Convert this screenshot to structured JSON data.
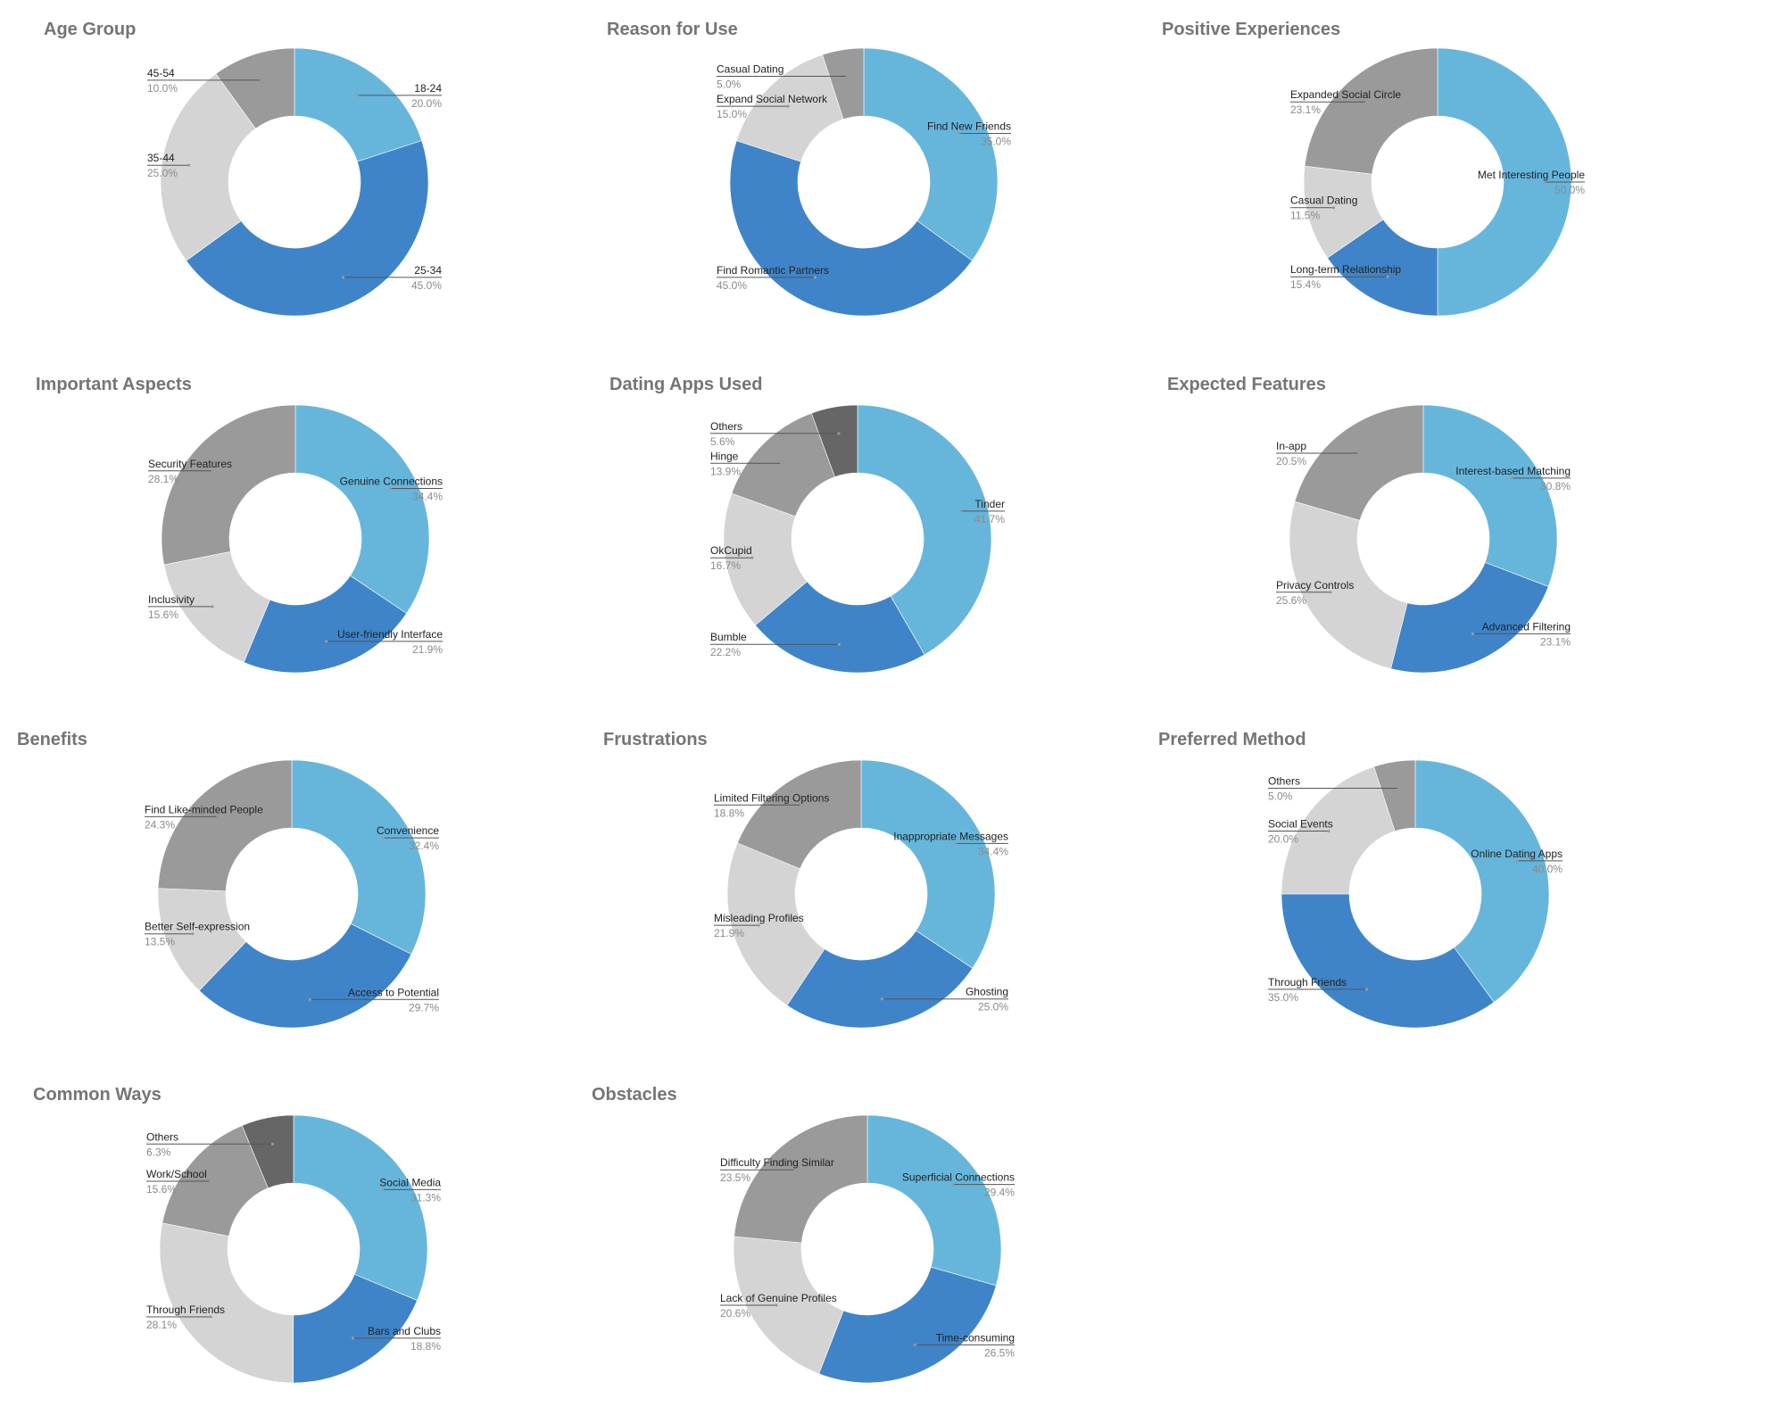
{
  "chart_data": [
    {
      "type": "pie",
      "title": "Age Group",
      "slices": [
        {
          "label": "18-24",
          "value": 20.0,
          "display": "20.0%",
          "color": "#66b6dc"
        },
        {
          "label": "25-34",
          "value": 45.0,
          "display": "45.0%",
          "color": "#3f84c8"
        },
        {
          "label": "35-44",
          "value": 25.0,
          "display": "25.0%",
          "color": "#d4d4d4"
        },
        {
          "label": "45-54",
          "value": 10.0,
          "display": "10.0%",
          "color": "#9a9a9a"
        }
      ]
    },
    {
      "type": "pie",
      "title": "Reason for Use",
      "slices": [
        {
          "label": "Find New Friends",
          "value": 35.0,
          "display": "35.0%",
          "color": "#66b6dc"
        },
        {
          "label": "Find Romantic Partners",
          "value": 45.0,
          "display": "45.0%",
          "color": "#3f84c8"
        },
        {
          "label": "Expand Social Network",
          "value": 15.0,
          "display": "15.0%",
          "color": "#d4d4d4"
        },
        {
          "label": "Casual Dating",
          "value": 5.0,
          "display": "5.0%",
          "color": "#9a9a9a"
        }
      ]
    },
    {
      "type": "pie",
      "title": "Positive Experiences",
      "slices": [
        {
          "label": "Met Interesting People",
          "value": 50.0,
          "display": "50.0%",
          "color": "#66b6dc"
        },
        {
          "label": "Long-term Relationship",
          "value": 15.4,
          "display": "15.4%",
          "color": "#3f84c8"
        },
        {
          "label": "Casual Dating",
          "value": 11.5,
          "display": "11.5%",
          "color": "#d4d4d4"
        },
        {
          "label": "Expanded Social Circle",
          "value": 23.1,
          "display": "23.1%",
          "color": "#9a9a9a"
        }
      ]
    },
    {
      "type": "pie",
      "title": "Important Aspects",
      "slices": [
        {
          "label": "Genuine Connections",
          "value": 34.4,
          "display": "34.4%",
          "color": "#66b6dc"
        },
        {
          "label": "User-friendly Interface",
          "value": 21.9,
          "display": "21.9%",
          "color": "#3f84c8"
        },
        {
          "label": "Inclusivity",
          "value": 15.6,
          "display": "15.6%",
          "color": "#d4d4d4"
        },
        {
          "label": "Security Features",
          "value": 28.1,
          "display": "28.1%",
          "color": "#9a9a9a"
        }
      ]
    },
    {
      "type": "pie",
      "title": "Dating Apps Used",
      "slices": [
        {
          "label": "Tinder",
          "value": 41.7,
          "display": "41.7%",
          "color": "#66b6dc"
        },
        {
          "label": "Bumble",
          "value": 22.2,
          "display": "22.2%",
          "color": "#3f84c8"
        },
        {
          "label": "OkCupid",
          "value": 16.7,
          "display": "16.7%",
          "color": "#d4d4d4"
        },
        {
          "label": "Hinge",
          "value": 13.9,
          "display": "13.9%",
          "color": "#9a9a9a"
        },
        {
          "label": "Others",
          "value": 5.6,
          "display": "5.6%",
          "color": "#666666"
        }
      ]
    },
    {
      "type": "pie",
      "title": "Expected Features",
      "slices": [
        {
          "label": "Interest-based Matching",
          "value": 30.8,
          "display": "30.8%",
          "color": "#66b6dc"
        },
        {
          "label": "Advanced Filtering",
          "value": 23.1,
          "display": "23.1%",
          "color": "#3f84c8"
        },
        {
          "label": "Privacy Controls",
          "value": 25.6,
          "display": "25.6%",
          "color": "#d4d4d4"
        },
        {
          "label": "In-app",
          "value": 20.5,
          "display": "20.5%",
          "color": "#9a9a9a"
        }
      ]
    },
    {
      "type": "pie",
      "title": "Benefits",
      "slices": [
        {
          "label": "Convenience",
          "value": 32.4,
          "display": "32.4%",
          "color": "#66b6dc"
        },
        {
          "label": "Access to Potential",
          "value": 29.7,
          "display": "29.7%",
          "color": "#3f84c8"
        },
        {
          "label": "Better Self-expression",
          "value": 13.5,
          "display": "13.5%",
          "color": "#d4d4d4"
        },
        {
          "label": "Find Like-minded People",
          "value": 24.3,
          "display": "24.3%",
          "color": "#9a9a9a"
        }
      ]
    },
    {
      "type": "pie",
      "title": "Frustrations",
      "slices": [
        {
          "label": "Inappropriate Messages",
          "value": 34.4,
          "display": "34.4%",
          "color": "#66b6dc"
        },
        {
          "label": "Ghosting",
          "value": 25.0,
          "display": "25.0%",
          "color": "#3f84c8"
        },
        {
          "label": "Misleading Profiles",
          "value": 21.9,
          "display": "21.9%",
          "color": "#d4d4d4"
        },
        {
          "label": "Limited Filtering Options",
          "value": 18.8,
          "display": "18.8%",
          "color": "#9a9a9a"
        }
      ]
    },
    {
      "type": "pie",
      "title": "Preferred Method",
      "slices": [
        {
          "label": "Online Dating Apps",
          "value": 40.0,
          "display": "40.0%",
          "color": "#66b6dc"
        },
        {
          "label": "Through Friends",
          "value": 35.0,
          "display": "35.0%",
          "color": "#3f84c8"
        },
        {
          "label": "Social Events",
          "value": 20.0,
          "display": "20.0%",
          "color": "#d4d4d4"
        },
        {
          "label": "Others",
          "value": 5.0,
          "display": "5.0%",
          "color": "#9a9a9a"
        }
      ]
    },
    {
      "type": "pie",
      "title": "Common Ways",
      "slices": [
        {
          "label": "Social Media",
          "value": 31.3,
          "display": "31.3%",
          "color": "#66b6dc"
        },
        {
          "label": "Bars and Clubs",
          "value": 18.8,
          "display": "18.8%",
          "color": "#3f84c8"
        },
        {
          "label": "Through Friends",
          "value": 28.1,
          "display": "28.1%",
          "color": "#d4d4d4"
        },
        {
          "label": "Work/School",
          "value": 15.6,
          "display": "15.6%",
          "color": "#9a9a9a"
        },
        {
          "label": "Others",
          "value": 6.3,
          "display": "6.3%",
          "color": "#666666"
        }
      ]
    },
    {
      "type": "pie",
      "title": "Obstacles",
      "slices": [
        {
          "label": "Superficial Connections",
          "value": 29.4,
          "display": "29.4%",
          "color": "#66b6dc"
        },
        {
          "label": "Time-consuming",
          "value": 26.5,
          "display": "26.5%",
          "color": "#3f84c8"
        },
        {
          "label": "Lack of Genuine Profiles",
          "value": 20.6,
          "display": "20.6%",
          "color": "#d4d4d4"
        },
        {
          "label": "Difficulty Finding Similar",
          "value": 23.5,
          "display": "23.5%",
          "color": "#9a9a9a"
        }
      ]
    }
  ]
}
